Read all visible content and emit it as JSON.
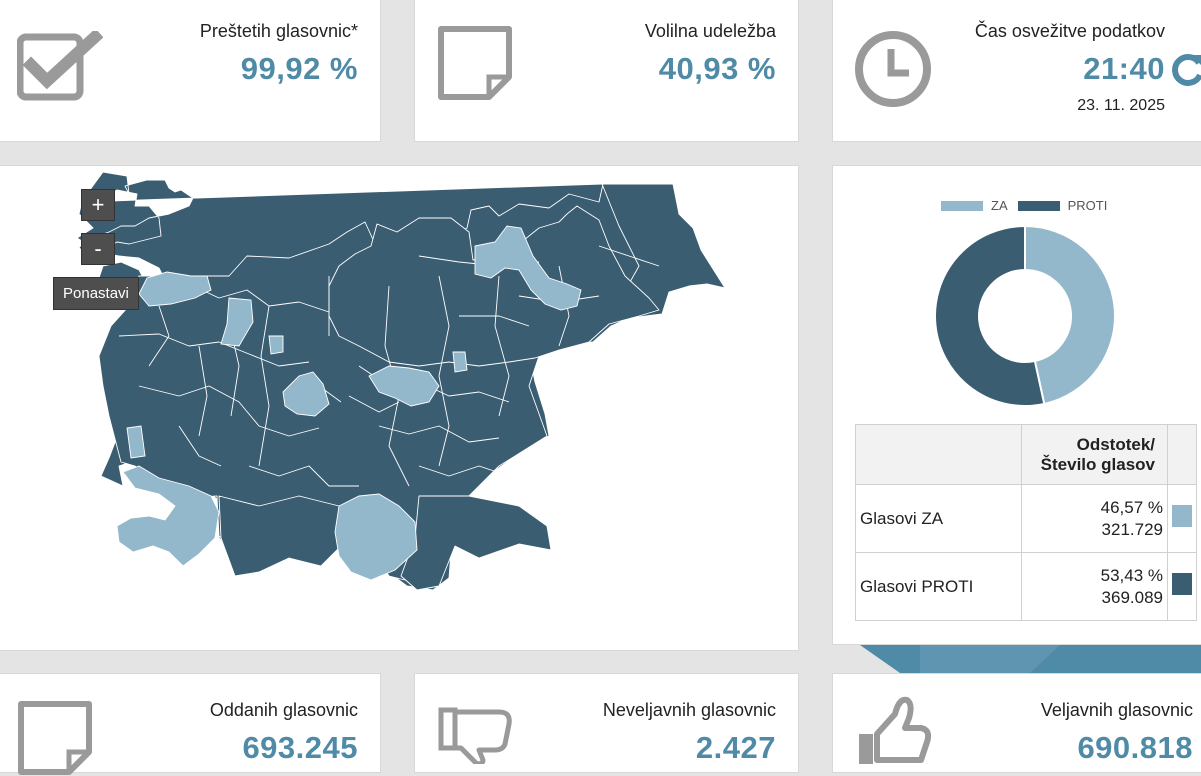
{
  "stats_top": [
    {
      "label": "Preštetih glasovnic*",
      "value": "99,92 %",
      "icon": "checkbox-icon"
    },
    {
      "label": "Volilna udeležba",
      "value": "40,93 %",
      "icon": "sticky-note-icon"
    },
    {
      "label": "Čas osvežitve podatkov",
      "value": "21:40",
      "sub": "23. 11. 2025",
      "icon": "clock-icon"
    }
  ],
  "map": {
    "zoom_in": "+",
    "zoom_out": "-",
    "reset": "Ponastavi"
  },
  "chart_data": {
    "type": "pie",
    "categories": [
      "ZA",
      "PROTI"
    ],
    "values": [
      46.57,
      53.43
    ],
    "colors": [
      "#93b8cb",
      "#3b5d71"
    ],
    "legend_position": "top"
  },
  "results": {
    "header": [
      "Odstotek/",
      "Število glasov"
    ],
    "rows": [
      {
        "label": "Glasovi ZA",
        "percent": "46,57 %",
        "count": "321.729",
        "color": "#93b8cb"
      },
      {
        "label": "Glasovi PROTI",
        "percent": "53,43 %",
        "count": "369.089",
        "color": "#3b5d71"
      }
    ]
  },
  "stats_bottom": [
    {
      "label": "Oddanih glasovnic",
      "value": "693.245",
      "icon": "sticky-note-icon"
    },
    {
      "label": "Neveljavnih glasovnic",
      "value": "2.427",
      "icon": "thumbs-down-icon"
    },
    {
      "label": "Veljavnih glasovnic",
      "value": "690.818",
      "icon": "thumbs-up-icon"
    }
  ]
}
